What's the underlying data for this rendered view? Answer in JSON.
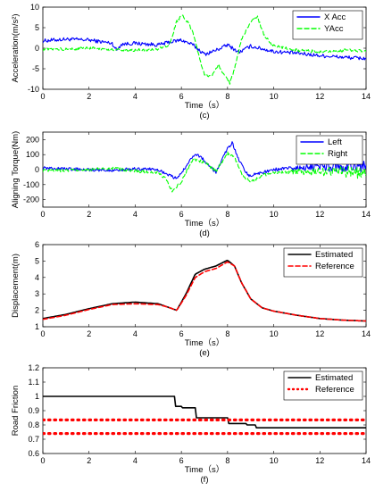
{
  "chart_data": [
    {
      "type": "line",
      "panel_label": "(c)",
      "xlabel": "Time（s）",
      "ylabel": "Acceleration(m/s²)",
      "xlim": [
        0,
        14
      ],
      "ylim": [
        -10,
        10
      ],
      "xticks": [
        0,
        2,
        4,
        6,
        8,
        10,
        12,
        14
      ],
      "yticks": [
        -10,
        -5,
        0,
        5,
        10
      ],
      "legend_position": "top-right",
      "series": [
        {
          "name": "X Acc",
          "color": "#0000ff",
          "dash": "solid",
          "noise": 0.45,
          "x": [
            0,
            1,
            2,
            3,
            3.2,
            3.4,
            4,
            5,
            5.5,
            6,
            6.5,
            7,
            7.5,
            8,
            8.5,
            9,
            10,
            11,
            12,
            13,
            14
          ],
          "y": [
            1.8,
            2.2,
            2.0,
            1.2,
            -0.5,
            1.0,
            1.2,
            0.8,
            1.5,
            2.0,
            0.8,
            -1.5,
            -0.5,
            0.8,
            -1.0,
            0.5,
            -0.8,
            -1.2,
            -1.8,
            -2.2,
            -2.5
          ]
        },
        {
          "name": "YAcc",
          "color": "#00ff00",
          "dash": "dashed",
          "noise": 0.35,
          "x": [
            0,
            1,
            2,
            3,
            4,
            5,
            5.5,
            5.8,
            6.0,
            6.2,
            6.5,
            6.8,
            7.0,
            7.3,
            7.6,
            7.9,
            8.1,
            8.3,
            8.6,
            9.0,
            9.3,
            9.6,
            10,
            11,
            12,
            13,
            14
          ],
          "y": [
            -0.3,
            -0.2,
            0,
            -0.3,
            -0.5,
            -0.2,
            1.0,
            6.5,
            8.0,
            7.0,
            4.0,
            -3.0,
            -6.5,
            -7.0,
            -4.0,
            -7.0,
            -8.5,
            -5.0,
            2.0,
            6.5,
            7.5,
            3.0,
            0.5,
            -0.5,
            -0.8,
            -0.5,
            -0.6
          ]
        }
      ]
    },
    {
      "type": "line",
      "panel_label": "(d)",
      "xlabel": "Time（s）",
      "ylabel": "Aligning Torque(Nm)",
      "xlim": [
        0,
        14
      ],
      "ylim": [
        -250,
        250
      ],
      "xticks": [
        0,
        2,
        4,
        6,
        8,
        10,
        12,
        14
      ],
      "yticks": [
        -200,
        -100,
        0,
        100,
        200
      ],
      "legend_position": "top-right",
      "series": [
        {
          "name": "Left",
          "color": "#0000ff",
          "dash": "solid",
          "noise": 10,
          "x": [
            0,
            1,
            2,
            3,
            4,
            5,
            5.5,
            5.8,
            6.2,
            6.6,
            7.0,
            7.5,
            7.8,
            8.0,
            8.2,
            8.5,
            8.9,
            9.5,
            10,
            11,
            12,
            13,
            14
          ],
          "y": [
            10,
            5,
            0,
            -5,
            5,
            0,
            -40,
            -60,
            20,
            110,
            60,
            -20,
            80,
            140,
            180,
            60,
            -40,
            -20,
            0,
            10,
            20,
            20,
            30
          ]
        },
        {
          "name": "Right",
          "color": "#00ff00",
          "dash": "dashed",
          "noise": 10,
          "x": [
            0,
            1,
            2,
            3,
            4,
            5,
            5.3,
            5.6,
            6.0,
            6.5,
            7.0,
            7.5,
            8.0,
            8.3,
            8.7,
            9.0,
            9.5,
            10,
            11,
            12,
            13,
            14
          ],
          "y": [
            -5,
            -5,
            0,
            10,
            -10,
            -20,
            -60,
            -140,
            -80,
            70,
            50,
            -10,
            110,
            80,
            -50,
            -80,
            -40,
            -20,
            -15,
            -10,
            -15,
            -20
          ]
        }
      ]
    },
    {
      "type": "line",
      "panel_label": "(e)",
      "xlabel": "Time（s）",
      "ylabel": "Displacement(m)",
      "xlim": [
        0,
        14
      ],
      "ylim": [
        1,
        6
      ],
      "xticks": [
        0,
        2,
        4,
        6,
        8,
        10,
        12,
        14
      ],
      "yticks": [
        1,
        2,
        3,
        4,
        5,
        6
      ],
      "legend_position": "top-right",
      "series": [
        {
          "name": "Estimated",
          "color": "#000000",
          "dash": "solid",
          "noise": 0,
          "x": [
            0,
            1,
            2,
            3,
            4,
            5,
            5.4,
            5.8,
            6.2,
            6.6,
            7.0,
            7.5,
            8.0,
            8.3,
            8.6,
            9.0,
            9.5,
            10,
            11,
            12,
            13,
            14
          ],
          "y": [
            1.5,
            1.75,
            2.1,
            2.4,
            2.5,
            2.4,
            2.2,
            2.0,
            3.0,
            4.2,
            4.5,
            4.7,
            5.05,
            4.7,
            3.7,
            2.7,
            2.15,
            1.95,
            1.7,
            1.5,
            1.4,
            1.35
          ]
        },
        {
          "name": "Reference",
          "color": "#ff0000",
          "dash": "dashed",
          "noise": 0,
          "x": [
            0,
            1,
            2,
            3,
            4,
            5,
            5.4,
            5.8,
            6.2,
            6.6,
            7.0,
            7.5,
            8.0,
            8.3,
            8.6,
            9.0,
            9.5,
            10,
            11,
            12,
            13,
            14
          ],
          "y": [
            1.45,
            1.7,
            2.05,
            2.35,
            2.4,
            2.35,
            2.2,
            2.0,
            2.9,
            4.0,
            4.35,
            4.55,
            4.95,
            4.7,
            3.7,
            2.7,
            2.15,
            1.95,
            1.7,
            1.5,
            1.4,
            1.35
          ]
        }
      ]
    },
    {
      "type": "line",
      "panel_label": "(f)",
      "xlabel": "Time（s）",
      "ylabel": "Road Friction",
      "xlim": [
        0,
        14
      ],
      "ylim": [
        0.6,
        1.2
      ],
      "xticks": [
        0,
        2,
        4,
        6,
        8,
        10,
        12,
        14
      ],
      "yticks": [
        0.6,
        0.7,
        0.8,
        0.9,
        1,
        1.1,
        1.2
      ],
      "ytick_labels": [
        "0.6",
        "0.7",
        "0.8",
        "0.9",
        "1",
        "1.1",
        "1.2"
      ],
      "legend_position": "top-right",
      "series": [
        {
          "name": "Estimated",
          "color": "#000000",
          "dash": "solid",
          "noise": 0,
          "x": [
            0,
            5.7,
            5.75,
            6.0,
            6.05,
            6.6,
            6.65,
            8.0,
            8.05,
            8.8,
            8.85,
            9.2,
            9.25,
            14
          ],
          "y": [
            1.0,
            1.0,
            0.93,
            0.93,
            0.92,
            0.92,
            0.85,
            0.85,
            0.81,
            0.81,
            0.8,
            0.8,
            0.78,
            0.78
          ]
        },
        {
          "name": "Reference",
          "color": "#ff0000",
          "dash": "dotted",
          "noise": 0,
          "x": [
            0,
            14
          ],
          "y": [
            0.835,
            0.835
          ]
        },
        {
          "name": "",
          "color": "#ff0000",
          "dash": "dotted",
          "noise": 0,
          "x": [
            0,
            14
          ],
          "y": [
            0.74,
            0.74
          ]
        }
      ]
    }
  ]
}
